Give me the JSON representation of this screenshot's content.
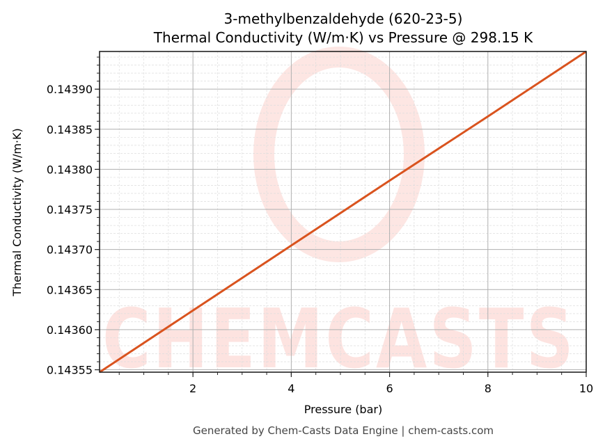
{
  "chart_data": {
    "type": "line",
    "title": "3-methylbenzaldehyde (620-23-5)",
    "subtitle": "Thermal Conductivity (W/m·K) vs Pressure @ 298.15 K",
    "xlabel": "Pressure (bar)",
    "ylabel": "Thermal Conductivity (W/m·K)",
    "xlim": [
      0.1,
      10
    ],
    "ylim": [
      0.143547,
      0.143947
    ],
    "x_ticks": [
      2,
      4,
      6,
      8,
      10
    ],
    "x_tick_labels": [
      "2",
      "4",
      "6",
      "8",
      "10"
    ],
    "y_ticks": [
      0.14355,
      0.1436,
      0.14365,
      0.1437,
      0.14375,
      0.1438,
      0.14385,
      0.1439
    ],
    "y_tick_labels": [
      "0.14355",
      "0.14360",
      "0.14365",
      "0.14370",
      "0.14375",
      "0.14380",
      "0.14385",
      "0.14390"
    ],
    "grid": true,
    "minor_grid": true,
    "legend": null,
    "series": [
      {
        "name": "Thermal Conductivity",
        "color": "#d9531e",
        "x": [
          0.1,
          2,
          4,
          6,
          8,
          10
        ],
        "y": [
          0.143547,
          0.143624,
          0.143705,
          0.143786,
          0.143866,
          0.143947
        ]
      }
    ]
  },
  "watermark": {
    "text": "CHEMCASTS",
    "color": "#fde3e0"
  },
  "footer": {
    "text": "Generated by Chem-Casts Data Engine | chem-casts.com"
  }
}
